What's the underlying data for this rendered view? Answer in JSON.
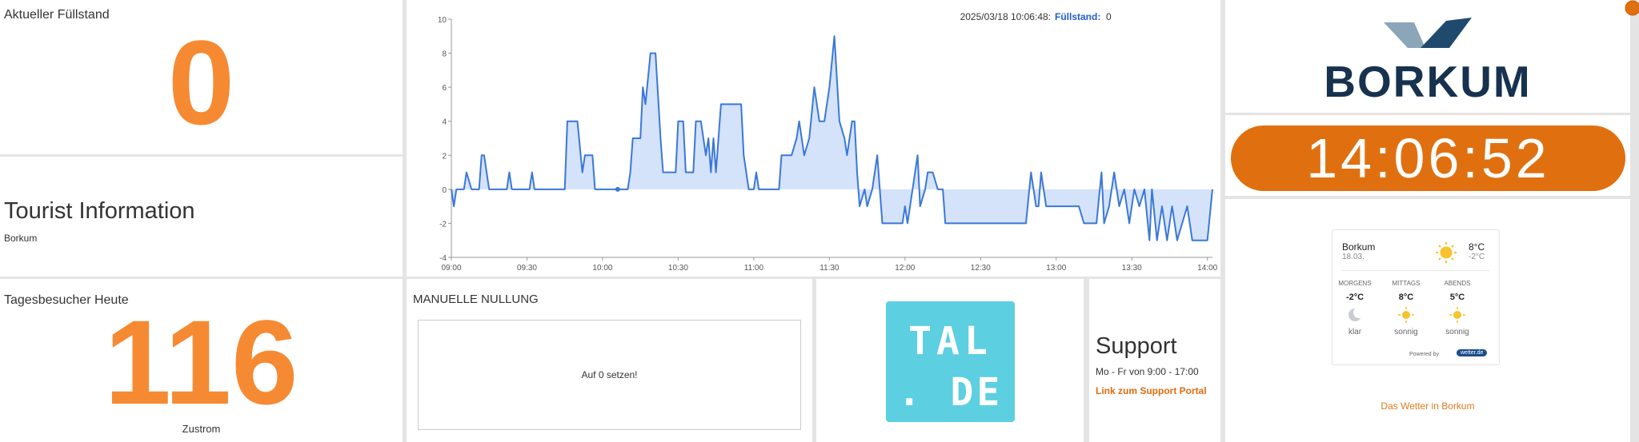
{
  "fuellstand": {
    "title": "Aktueller Füllstand",
    "value": 0
  },
  "tourist": {
    "title": "Tourist Information",
    "subtitle": "Borkum"
  },
  "besucher": {
    "title": "Tagesbesucher Heute",
    "value": 116,
    "caption": "Zustrom"
  },
  "nullung": {
    "title": "MANUELLE NULLUNG",
    "button": "Auf 0 setzen!"
  },
  "tal": {
    "line1": "TAL",
    "line2": ". DE"
  },
  "support": {
    "title": "Support",
    "hours": "Mo - Fr von 9:00 - 17:00",
    "link": "Link zum Support Portal"
  },
  "logo": {
    "text": "BORKUM"
  },
  "clock": {
    "time": "14:06:52"
  },
  "weather": {
    "location": "Borkum",
    "date": "18.03.",
    "high": "8°C",
    "low": "-2°C",
    "periods": [
      {
        "name": "MORGENS",
        "temp": "-2°C",
        "desc": "klar"
      },
      {
        "name": "MITTAGS",
        "temp": "8°C",
        "desc": "sonnig"
      },
      {
        "name": "ABENDS",
        "temp": "5°C",
        "desc": "sonnig"
      }
    ],
    "powered": "Powered by",
    "badge": "wetter.de",
    "link": "Das Wetter in Borkum"
  },
  "chart_data": {
    "type": "area",
    "color": "#3a78d8",
    "fill": "#d4e2fa",
    "annotation": {
      "text": "2025/03/18 10:06:48:",
      "label": "Füllstand:",
      "value": 0,
      "x": "10:06"
    },
    "x": [
      "09:00",
      "09:01",
      "09:02",
      "09:05",
      "09:06",
      "09:08",
      "09:11",
      "09:12",
      "09:13",
      "09:15",
      "09:22",
      "09:23",
      "09:24",
      "09:31",
      "09:32",
      "09:33",
      "09:45",
      "09:46",
      "09:50",
      "09:52",
      "09:53",
      "09:56",
      "09:57",
      "10:06",
      "10:10",
      "10:11",
      "10:12",
      "10:15",
      "10:16",
      "10:17",
      "10:19",
      "10:21",
      "10:23",
      "10:24",
      "10:29",
      "10:30",
      "10:32",
      "10:33",
      "10:36",
      "10:37",
      "10:39",
      "10:41",
      "10:42",
      "10:43",
      "10:44",
      "10:45",
      "10:47",
      "10:55",
      "10:56",
      "10:58",
      "11:00",
      "11:01",
      "11:02",
      "11:10",
      "11:11",
      "11:15",
      "11:17",
      "11:18",
      "11:20",
      "11:22",
      "11:24",
      "11:26",
      "11:28",
      "11:30",
      "11:32",
      "11:34",
      "11:36",
      "11:37",
      "11:39",
      "11:40",
      "11:41",
      "11:42",
      "11:44",
      "11:45",
      "11:47",
      "11:49",
      "11:51",
      "11:59",
      "12:00",
      "12:01",
      "12:03",
      "12:04",
      "12:05",
      "12:06",
      "12:08",
      "12:09",
      "12:11",
      "12:13",
      "12:15",
      "12:16",
      "12:48",
      "12:50",
      "12:52",
      "12:53",
      "12:54",
      "12:56",
      "13:09",
      "13:11",
      "13:16",
      "13:18",
      "13:19",
      "13:21",
      "13:23",
      "13:25",
      "13:27",
      "13:29",
      "13:31",
      "13:33",
      "13:35",
      "13:37",
      "13:38",
      "13:40",
      "13:42",
      "13:44",
      "13:46",
      "13:48",
      "13:50",
      "13:52",
      "13:54",
      "14:00",
      "14:02"
    ],
    "values": [
      0,
      -1,
      0,
      0,
      1,
      0,
      0,
      2,
      2,
      0,
      0,
      1,
      0,
      0,
      1,
      0,
      0,
      4,
      4,
      1,
      2,
      2,
      0,
      0,
      0,
      1,
      3,
      3,
      6,
      5,
      8,
      8,
      3,
      1,
      1,
      4,
      4,
      1,
      1,
      4,
      4,
      2,
      3,
      1,
      3,
      1,
      5,
      5,
      2,
      0,
      0,
      1,
      0,
      0,
      2,
      2,
      3,
      4,
      2,
      3,
      6,
      4,
      4,
      6,
      9,
      4,
      3,
      2,
      4,
      4,
      1,
      -1,
      0,
      -1,
      0,
      2,
      -2,
      -2,
      -1,
      -2,
      0,
      1,
      2,
      -1,
      0,
      1,
      1,
      0,
      0,
      -2,
      -2,
      1,
      -1,
      -1,
      1,
      -1,
      -1,
      -2,
      -2,
      1,
      -2,
      -1,
      1,
      -1,
      0,
      -2,
      0,
      -1,
      0,
      -3,
      0,
      -3,
      -1,
      -3,
      -1,
      -3,
      -2,
      -1,
      -3,
      -3,
      0
    ],
    "xlim": [
      "09:00",
      "14:02"
    ],
    "xticks": [
      "09:00",
      "09:30",
      "10:00",
      "10:30",
      "11:00",
      "11:30",
      "12:00",
      "12:30",
      "13:00",
      "13:30",
      "14:00"
    ],
    "ylim": [
      -4,
      10
    ],
    "yticks": [
      -4,
      -2,
      0,
      2,
      4,
      6,
      8,
      10
    ]
  }
}
